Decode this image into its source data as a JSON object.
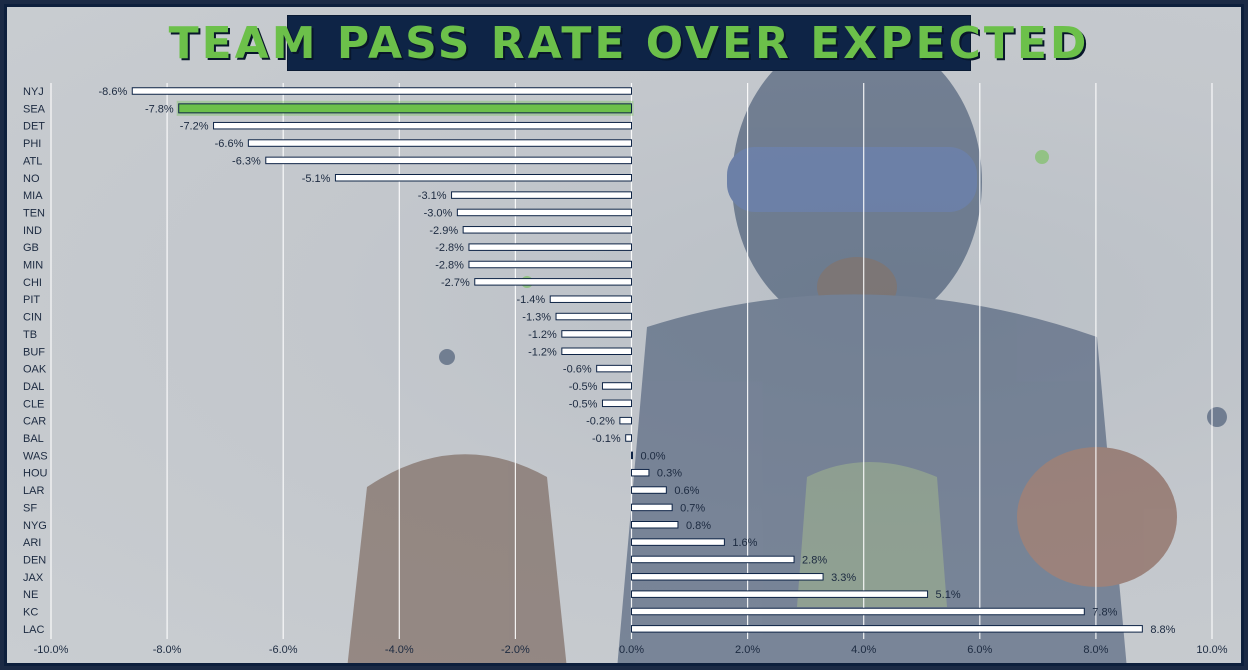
{
  "title": "TEAM PASS RATE OVER EXPECTED",
  "colors": {
    "bar_default": "#ffffff",
    "bar_highlight": "#6cc04a",
    "bar_stroke": "#0e2446",
    "title_bg": "#0e2446",
    "title_text": "#6cc04a",
    "frame": "#0d1f3c"
  },
  "chart_data": {
    "type": "bar",
    "orientation": "horizontal",
    "title": "TEAM PASS RATE OVER EXPECTED",
    "xlabel": "",
    "ylabel": "",
    "xlim": [
      -10.0,
      10.0
    ],
    "x_ticks": [
      "-10.0%",
      "-8.0%",
      "-6.0%",
      "-4.0%",
      "-2.0%",
      "0.0%",
      "2.0%",
      "4.0%",
      "6.0%",
      "8.0%",
      "10.0%"
    ],
    "grid": "vertical",
    "highlight": "SEA",
    "categories": [
      "NYJ",
      "SEA",
      "DET",
      "PHI",
      "ATL",
      "NO",
      "MIA",
      "TEN",
      "IND",
      "GB",
      "MIN",
      "CHI",
      "PIT",
      "CIN",
      "TB",
      "BUF",
      "OAK",
      "DAL",
      "CLE",
      "CAR",
      "BAL",
      "WAS",
      "HOU",
      "LAR",
      "SF",
      "NYG",
      "ARI",
      "DEN",
      "JAX",
      "NE",
      "KC",
      "LAC"
    ],
    "values": [
      -8.6,
      -7.8,
      -7.2,
      -6.6,
      -6.3,
      -5.1,
      -3.1,
      -3.0,
      -2.9,
      -2.8,
      -2.8,
      -2.7,
      -1.4,
      -1.3,
      -1.2,
      -1.2,
      -0.6,
      -0.5,
      -0.5,
      -0.2,
      -0.1,
      0.0,
      0.3,
      0.6,
      0.7,
      0.8,
      1.6,
      2.8,
      3.3,
      5.1,
      7.8,
      8.8
    ],
    "labels": [
      "-8.6%",
      "-7.8%",
      "-7.2%",
      "-6.6%",
      "-6.3%",
      "-5.1%",
      "-3.1%",
      "-3.0%",
      "-2.9%",
      "-2.8%",
      "-2.8%",
      "-2.7%",
      "-1.4%",
      "-1.3%",
      "-1.2%",
      "-1.2%",
      "-0.6%",
      "-0.5%",
      "-0.5%",
      "-0.2%",
      "-0.1%",
      "0.0%",
      "0.3%",
      "0.6%",
      "0.7%",
      "0.8%",
      "1.6%",
      "2.8%",
      "3.3%",
      "5.1%",
      "7.8%",
      "8.8%"
    ]
  }
}
